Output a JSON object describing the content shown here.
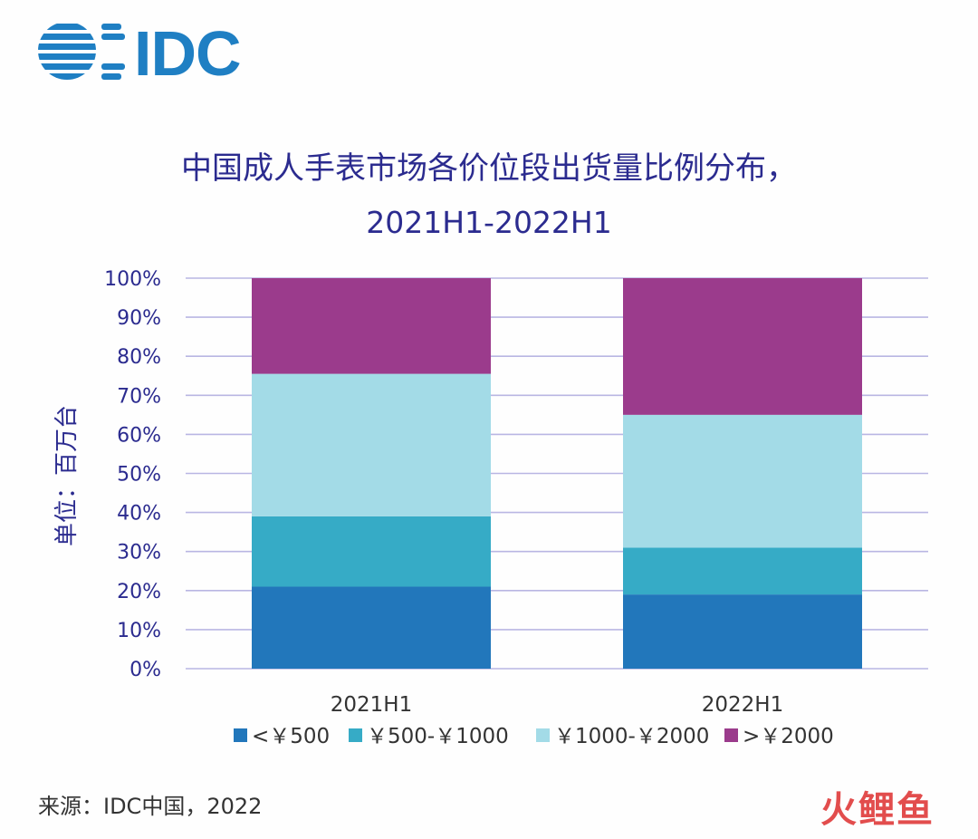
{
  "logo": {
    "text": "IDC",
    "color": "#1f7fc3"
  },
  "chart_data": {
    "type": "bar",
    "stacked": true,
    "title": "中国成人手表市场各价位段出货量比例分布，",
    "subtitle": "2021H1-2022H1",
    "ylabel": "单位：百万台",
    "xlabel": "",
    "ylim": [
      0,
      100
    ],
    "yticks": [
      "0%",
      "10%",
      "20%",
      "30%",
      "40%",
      "50%",
      "60%",
      "70%",
      "80%",
      "90%",
      "100%"
    ],
    "grid": true,
    "legend_position": "bottom",
    "categories": [
      "2021H1",
      "2022H1"
    ],
    "series": [
      {
        "name": "<￥500",
        "color": "#2277bb",
        "values": [
          21,
          19
        ]
      },
      {
        "name": "￥500-￥1000",
        "color": "#36abc6",
        "values": [
          18,
          12
        ]
      },
      {
        "name": "￥1000-￥2000",
        "color": "#a3dbe7",
        "values": [
          36.5,
          34
        ]
      },
      {
        "name": ">￥2000",
        "color": "#9b3b8c",
        "values": [
          24.5,
          35
        ]
      }
    ]
  },
  "source": "来源：IDC中国，2022",
  "watermark": "火鲤鱼"
}
